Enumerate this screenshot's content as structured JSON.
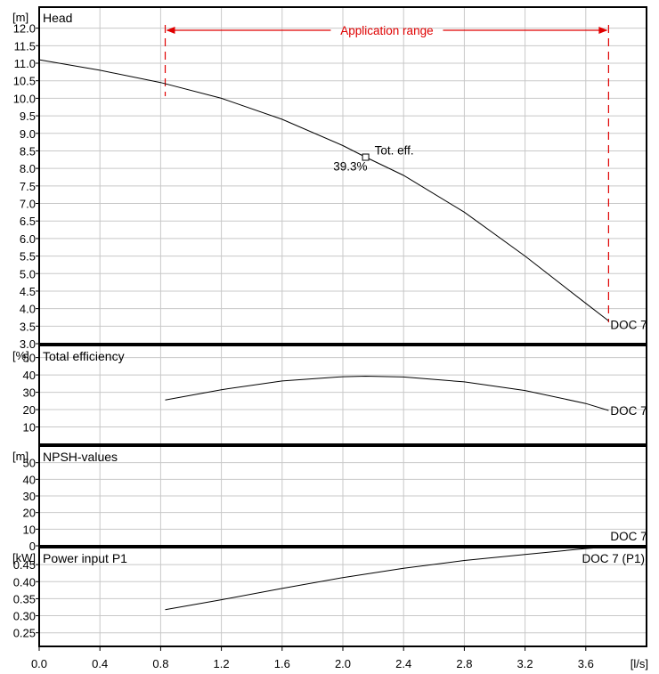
{
  "chart_data": {
    "type": "line",
    "x_label": "[l/s]",
    "x_ticks": [
      "0.0",
      "0.4",
      "0.8",
      "1.2",
      "1.6",
      "2.0",
      "2.4",
      "2.8",
      "3.2",
      "3.6"
    ],
    "xlim": [
      0,
      4.0
    ],
    "grid": true,
    "panels": [
      {
        "id": "head",
        "title": "Head",
        "unit": "[m]",
        "ylim": [
          3.0,
          12.6
        ],
        "y_ticks": [
          "3.0",
          "3.5",
          "4.0",
          "4.5",
          "5.0",
          "5.5",
          "6.0",
          "6.5",
          "7.0",
          "7.5",
          "8.0",
          "8.5",
          "9.0",
          "9.5",
          "10.0",
          "10.5",
          "11.0",
          "11.5",
          "12.0"
        ],
        "series": [
          {
            "name": "DOC 7",
            "x": [
              0.0,
              0.4,
              0.8,
              1.2,
              1.6,
              2.0,
              2.15,
              2.4,
              2.8,
              3.2,
              3.6,
              3.75
            ],
            "y": [
              11.1,
              10.8,
              10.45,
              10.0,
              9.4,
              8.65,
              8.32,
              7.8,
              6.75,
              5.5,
              4.15,
              3.65
            ]
          }
        ],
        "application_range": {
          "label": "Application range",
          "x_min": 0.83,
          "x_max": 3.75
        },
        "annotation": {
          "label": "Tot. eff.",
          "value_label": "39.3%",
          "x": 2.15,
          "y": 8.32
        }
      },
      {
        "id": "efficiency",
        "title": "Total efficiency",
        "unit": "[%]",
        "ylim": [
          0,
          57
        ],
        "y_ticks": [
          "10",
          "20",
          "30",
          "40",
          "50"
        ],
        "series": [
          {
            "name": "DOC 7",
            "x": [
              0.83,
              1.2,
              1.6,
              2.0,
              2.15,
              2.4,
              2.8,
              3.2,
              3.6,
              3.75
            ],
            "y": [
              25.5,
              31.5,
              36.5,
              39.0,
              39.3,
              38.8,
              36.0,
              31.0,
              23.5,
              19.5
            ]
          }
        ]
      },
      {
        "id": "npsh",
        "title": "NPSH-values",
        "unit": "[m]",
        "ylim": [
          0,
          60
        ],
        "y_ticks": [
          "0",
          "10",
          "20",
          "30",
          "40",
          "50"
        ],
        "series": [
          {
            "name": "DOC 7",
            "x": [],
            "y": []
          }
        ]
      },
      {
        "id": "power",
        "title": "Power input P1",
        "unit": "[kW]",
        "ylim": [
          0.21,
          0.5
        ],
        "y_ticks": [
          "0.25",
          "0.30",
          "0.35",
          "0.40",
          "0.45"
        ],
        "series": [
          {
            "name": "DOC 7 (P1)",
            "x": [
              0.83,
              1.2,
              1.6,
              2.0,
              2.4,
              2.8,
              3.2,
              3.6,
              3.75
            ],
            "y": [
              0.318,
              0.347,
              0.38,
              0.412,
              0.439,
              0.462,
              0.48,
              0.497,
              0.502
            ]
          }
        ]
      }
    ]
  }
}
